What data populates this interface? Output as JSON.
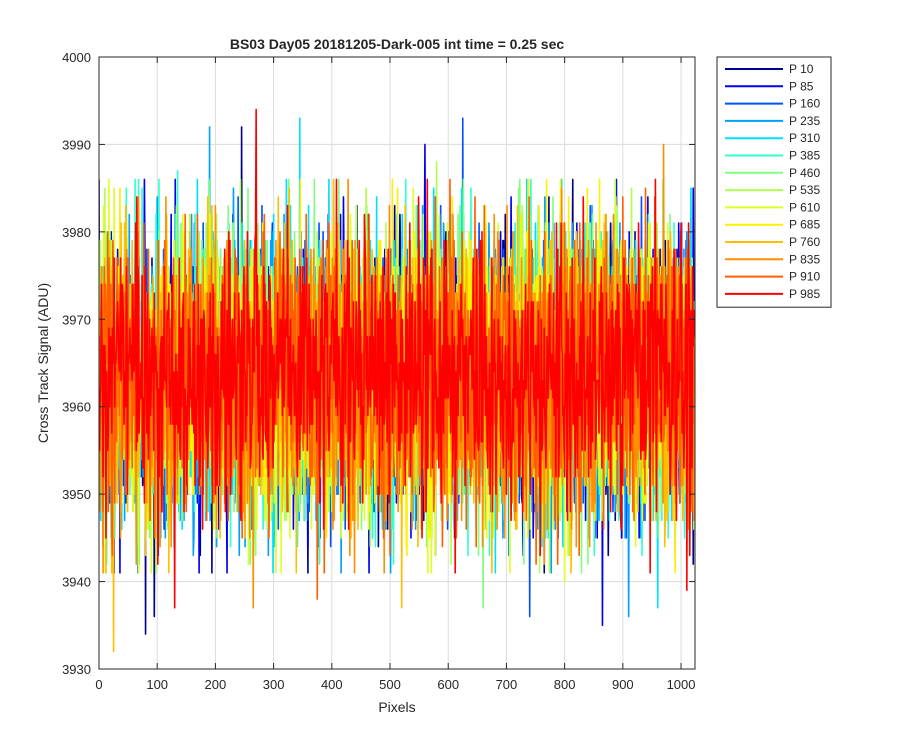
{
  "chart_data": {
    "type": "line",
    "title": "BS03 Day05 20181205-Dark-005 int time = 0.25 sec",
    "xlabel": "Pixels",
    "ylabel": "Cross Track Signal (ADU)",
    "xlim": [
      0,
      1024
    ],
    "ylim": [
      3930,
      4000
    ],
    "xticks": [
      0,
      100,
      200,
      300,
      400,
      500,
      600,
      700,
      800,
      900,
      1000
    ],
    "yticks": [
      3930,
      3940,
      3950,
      3960,
      3970,
      3980,
      3990,
      4000
    ],
    "grid": true,
    "legend_position": "outside-top-right",
    "n_points": 1024,
    "series": [
      {
        "name": "P 10",
        "color": "#00008f",
        "mean": 3963.5,
        "std": 8.0,
        "spikes": [
          [
            245,
            3992
          ],
          [
            80,
            3934
          ],
          [
            95,
            3936
          ]
        ]
      },
      {
        "name": "P 85",
        "color": "#0000ef",
        "mean": 3963.5,
        "std": 8.0,
        "spikes": [
          [
            560,
            3990
          ],
          [
            865,
            3935
          ]
        ]
      },
      {
        "name": "P 160",
        "color": "#0050ff",
        "mean": 3963.5,
        "std": 8.0,
        "spikes": [
          [
            625,
            3993
          ],
          [
            740,
            3936
          ]
        ]
      },
      {
        "name": "P 235",
        "color": "#00a0ff",
        "mean": 3963.5,
        "std": 8.0,
        "spikes": [
          [
            190,
            3992
          ],
          [
            910,
            3936
          ]
        ]
      },
      {
        "name": "P 310",
        "color": "#00dfff",
        "mean": 3963.5,
        "std": 8.0,
        "spikes": [
          [
            345,
            3993
          ],
          [
            960,
            3937
          ]
        ]
      },
      {
        "name": "P 385",
        "color": "#30ffcf",
        "mean": 3963.5,
        "std": 8.0,
        "spikes": [
          [
            135,
            3987
          ]
        ]
      },
      {
        "name": "P 460",
        "color": "#80ff7f",
        "mean": 3963.5,
        "std": 8.0,
        "spikes": [
          [
            660,
            3937
          ]
        ]
      },
      {
        "name": "P 535",
        "color": "#b0ff4f",
        "mean": 3963.5,
        "std": 8.0,
        "spikes": [
          [
            580,
            3988
          ]
        ]
      },
      {
        "name": "P 610",
        "color": "#dfff20",
        "mean": 3963.5,
        "std": 8.0,
        "spikes": [
          [
            800,
            3940
          ]
        ]
      },
      {
        "name": "P 685",
        "color": "#ffef00",
        "mean": 3963.5,
        "std": 8.0,
        "spikes": [
          [
            860,
            3986
          ]
        ]
      },
      {
        "name": "P 760",
        "color": "#ffbf00",
        "mean": 3963.5,
        "std": 8.0,
        "spikes": [
          [
            25,
            3932
          ],
          [
            520,
            3937
          ]
        ]
      },
      {
        "name": "P 835",
        "color": "#ff8f00",
        "mean": 3963.5,
        "std": 8.0,
        "spikes": [
          [
            970,
            3990
          ],
          [
            265,
            3937
          ]
        ]
      },
      {
        "name": "P 910",
        "color": "#ff5f00",
        "mean": 3963.5,
        "std": 8.0,
        "spikes": [
          [
            375,
            3938
          ]
        ]
      },
      {
        "name": "P 985",
        "color": "#ff0000",
        "mean": 3963.5,
        "std": 7.5,
        "spikes": [
          [
            270,
            3994
          ],
          [
            130,
            3937
          ],
          [
            1010,
            3939
          ]
        ]
      }
    ]
  }
}
